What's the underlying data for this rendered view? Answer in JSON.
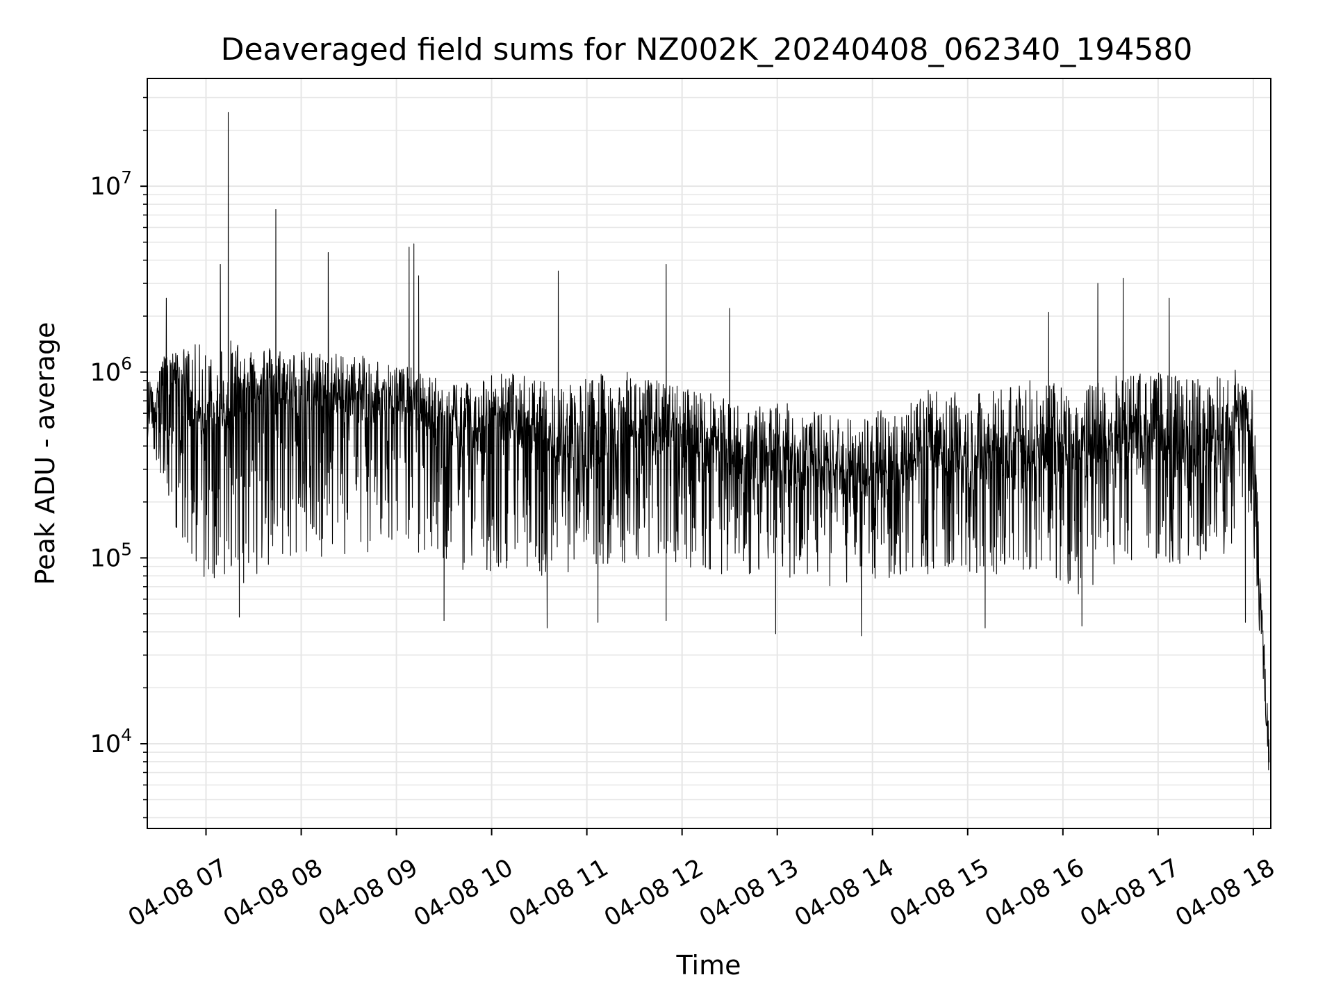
{
  "chart_data": {
    "type": "line",
    "title": "Deaveraged field sums for NZ002K_20240408_062340_194580",
    "xlabel": "Time",
    "ylabel": "Peak ADU - average",
    "yscale": "log",
    "ylim": [
      3500,
      38000000
    ],
    "xlim": [
      "2024-04-08 06:23",
      "2024-04-08 18:11"
    ],
    "grid": true,
    "line_color": "#000000",
    "grid_color": "#e6e6e6",
    "x_ticks": [
      {
        "label": "04-08 07",
        "x": "2024-04-08 07:00"
      },
      {
        "label": "04-08 08",
        "x": "2024-04-08 08:00"
      },
      {
        "label": "04-08 09",
        "x": "2024-04-08 09:00"
      },
      {
        "label": "04-08 10",
        "x": "2024-04-08 10:00"
      },
      {
        "label": "04-08 11",
        "x": "2024-04-08 11:00"
      },
      {
        "label": "04-08 12",
        "x": "2024-04-08 12:00"
      },
      {
        "label": "04-08 13",
        "x": "2024-04-08 13:00"
      },
      {
        "label": "04-08 14",
        "x": "2024-04-08 14:00"
      },
      {
        "label": "04-08 15",
        "x": "2024-04-08 15:00"
      },
      {
        "label": "04-08 16",
        "x": "2024-04-08 16:00"
      },
      {
        "label": "04-08 17",
        "x": "2024-04-08 17:00"
      },
      {
        "label": "04-08 18",
        "x": "2024-04-08 18:00"
      }
    ],
    "y_ticks": [
      {
        "base": "10",
        "exp": "4",
        "value": 10000
      },
      {
        "base": "10",
        "exp": "5",
        "value": 100000
      },
      {
        "base": "10",
        "exp": "6",
        "value": 1000000
      },
      {
        "base": "10",
        "exp": "7",
        "value": 10000000
      }
    ],
    "series": [
      {
        "x": [
          "2024-04-08 06:23",
          "2024-04-08 06:30",
          "2024-04-08 06:40",
          "2024-04-08 06:50",
          "2024-04-08 07:00",
          "2024-04-08 07:10",
          "2024-04-08 07:20",
          "2024-04-08 07:30",
          "2024-04-08 07:40",
          "2024-04-08 07:50",
          "2024-04-08 08:00",
          "2024-04-08 08:15",
          "2024-04-08 08:30",
          "2024-04-08 08:45",
          "2024-04-08 09:00",
          "2024-04-08 09:15",
          "2024-04-08 09:30",
          "2024-04-08 09:45",
          "2024-04-08 10:00",
          "2024-04-08 10:15",
          "2024-04-08 10:30",
          "2024-04-08 10:45",
          "2024-04-08 11:00",
          "2024-04-08 11:15",
          "2024-04-08 11:30",
          "2024-04-08 11:45",
          "2024-04-08 12:00",
          "2024-04-08 12:15",
          "2024-04-08 12:30",
          "2024-04-08 12:45",
          "2024-04-08 13:00",
          "2024-04-08 13:15",
          "2024-04-08 13:30",
          "2024-04-08 13:45",
          "2024-04-08 14:00",
          "2024-04-08 14:15",
          "2024-04-08 14:30",
          "2024-04-08 14:45",
          "2024-04-08 15:00",
          "2024-04-08 15:15",
          "2024-04-08 15:30",
          "2024-04-08 15:45",
          "2024-04-08 16:00",
          "2024-04-08 16:15",
          "2024-04-08 16:30",
          "2024-04-08 16:45",
          "2024-04-08 17:00",
          "2024-04-08 17:15",
          "2024-04-08 17:30",
          "2024-04-08 17:45",
          "2024-04-08 17:55",
          "2024-04-08 18:00",
          "2024-04-08 18:05",
          "2024-04-08 18:10"
        ],
        "y": [
          600000,
          800000,
          1000000,
          600000,
          500000,
          600000,
          700000,
          800000,
          800000,
          750000,
          700000,
          750000,
          700000,
          700000,
          700000,
          600000,
          500000,
          450000,
          500000,
          550000,
          450000,
          420000,
          400000,
          450000,
          500000,
          450000,
          420000,
          400000,
          350000,
          320000,
          350000,
          320000,
          300000,
          280000,
          250000,
          300000,
          350000,
          380000,
          350000,
          330000,
          400000,
          400000,
          350000,
          350000,
          400000,
          450000,
          450000,
          420000,
          400000,
          400000,
          700000,
          300000,
          50000,
          8000
        ],
        "y_high": [
          900000,
          1200000,
          1300000,
          1400000,
          1450000,
          1500000,
          1500000,
          1450000,
          1400000,
          1350000,
          1300000,
          1300000,
          1250000,
          1200000,
          1150000,
          1000000,
          900000,
          950000,
          1000000,
          1000000,
          900000,
          900000,
          950000,
          1000000,
          1000000,
          900000,
          850000,
          800000,
          700000,
          650000,
          700000,
          650000,
          600000,
          600000,
          600000,
          700000,
          800000,
          800000,
          750000,
          800000,
          900000,
          900000,
          850000,
          850000,
          950000,
          1000000,
          1000000,
          950000,
          950000,
          950000,
          1200000,
          800000,
          70000,
          20000
        ],
        "y_low": [
          450000,
          300000,
          150000,
          90000,
          75000,
          70000,
          70000,
          75000,
          80000,
          85000,
          90000,
          95000,
          100000,
          100000,
          110000,
          100000,
          90000,
          85000,
          85000,
          90000,
          80000,
          80000,
          85000,
          90000,
          95000,
          90000,
          90000,
          85000,
          80000,
          80000,
          80000,
          75000,
          70000,
          72000,
          70000,
          75000,
          80000,
          85000,
          85000,
          80000,
          85000,
          85000,
          70000,
          60000,
          80000,
          90000,
          95000,
          90000,
          90000,
          95000,
          200000,
          100000,
          30000,
          5500
        ],
        "spikes": [
          {
            "x": "2024-04-08 07:14",
            "y": 25000000
          },
          {
            "x": "2024-04-08 07:44",
            "y": 7500000
          },
          {
            "x": "2024-04-08 07:09",
            "y": 3800000
          },
          {
            "x": "2024-04-08 08:17",
            "y": 4400000
          },
          {
            "x": "2024-04-08 09:08",
            "y": 4700000
          },
          {
            "x": "2024-04-08 09:11",
            "y": 4900000
          },
          {
            "x": "2024-04-08 09:14",
            "y": 3300000
          },
          {
            "x": "2024-04-08 10:42",
            "y": 3500000
          },
          {
            "x": "2024-04-08 11:50",
            "y": 3800000
          },
          {
            "x": "2024-04-08 12:30",
            "y": 2200000
          },
          {
            "x": "2024-04-08 16:22",
            "y": 3000000
          },
          {
            "x": "2024-04-08 16:38",
            "y": 3200000
          },
          {
            "x": "2024-04-08 17:07",
            "y": 2500000
          },
          {
            "x": "2024-04-08 06:35",
            "y": 2500000
          },
          {
            "x": "2024-04-08 15:51",
            "y": 2100000
          }
        ],
        "dips": [
          {
            "x": "2024-04-08 07:21",
            "y": 48000
          },
          {
            "x": "2024-04-08 09:30",
            "y": 46000
          },
          {
            "x": "2024-04-08 10:35",
            "y": 42000
          },
          {
            "x": "2024-04-08 11:07",
            "y": 45000
          },
          {
            "x": "2024-04-08 11:50",
            "y": 46000
          },
          {
            "x": "2024-04-08 12:59",
            "y": 39000
          },
          {
            "x": "2024-04-08 13:53",
            "y": 38000
          },
          {
            "x": "2024-04-08 15:11",
            "y": 42000
          },
          {
            "x": "2024-04-08 16:12",
            "y": 43000
          },
          {
            "x": "2024-04-08 17:55",
            "y": 45000
          }
        ]
      }
    ]
  }
}
